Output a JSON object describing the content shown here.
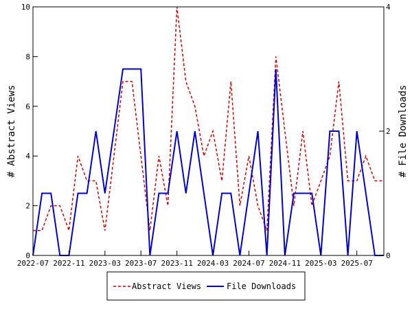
{
  "chart_data": {
    "type": "line",
    "title": "",
    "xlabel": "",
    "ylabel": "# Abstract Views",
    "y2label": "# File Downloads",
    "x_tick_labels": [
      "2022-07",
      "2022-11",
      "2023-03",
      "2023-07",
      "2023-11",
      "2024-03",
      "2024-07",
      "2024-11",
      "2025-03",
      "2025-07"
    ],
    "x_range": [
      "2022-07",
      "2025-10"
    ],
    "ylim": [
      0,
      10
    ],
    "y_ticks": [
      0,
      2,
      4,
      6,
      8,
      10
    ],
    "y2lim": [
      0,
      4
    ],
    "y2_ticks": [
      0,
      2,
      4
    ],
    "grid": false,
    "legend_position": "bottom-center",
    "x": [
      "2022-07",
      "2022-08",
      "2022-09",
      "2022-10",
      "2022-11",
      "2022-12",
      "2023-01",
      "2023-02",
      "2023-03",
      "2023-04",
      "2023-05",
      "2023-06",
      "2023-07",
      "2023-08",
      "2023-09",
      "2023-10",
      "2023-11",
      "2023-12",
      "2024-01",
      "2024-02",
      "2024-03",
      "2024-04",
      "2024-05",
      "2024-06",
      "2024-07",
      "2024-08",
      "2024-09",
      "2024-10",
      "2024-11",
      "2024-12",
      "2025-01",
      "2025-02",
      "2025-03",
      "2025-04",
      "2025-05",
      "2025-06",
      "2025-07",
      "2025-08",
      "2025-09",
      "2025-10"
    ],
    "series": [
      {
        "name": "Abstract Views",
        "axis": "left",
        "color": "#cc0000",
        "style": "dashed",
        "values": [
          1,
          1,
          2,
          2,
          1,
          4,
          3,
          3,
          1,
          4,
          7,
          7,
          4,
          1,
          4,
          2,
          10,
          7,
          6,
          4,
          5,
          3,
          7,
          2,
          4,
          2,
          1,
          8,
          5,
          2,
          5,
          2,
          3,
          4,
          7,
          3,
          3,
          4,
          3,
          3
        ]
      },
      {
        "name": "File Downloads",
        "axis": "right",
        "color": "#0000cc",
        "style": "solid",
        "values": [
          0,
          1,
          1,
          0,
          0,
          1,
          1,
          2,
          1,
          2,
          3,
          3,
          3,
          0,
          1,
          1,
          2,
          1,
          2,
          1,
          0,
          1,
          1,
          0,
          1,
          2,
          0,
          3,
          0,
          1,
          1,
          1,
          0,
          2,
          2,
          0,
          2,
          1,
          0,
          0
        ]
      }
    ]
  }
}
